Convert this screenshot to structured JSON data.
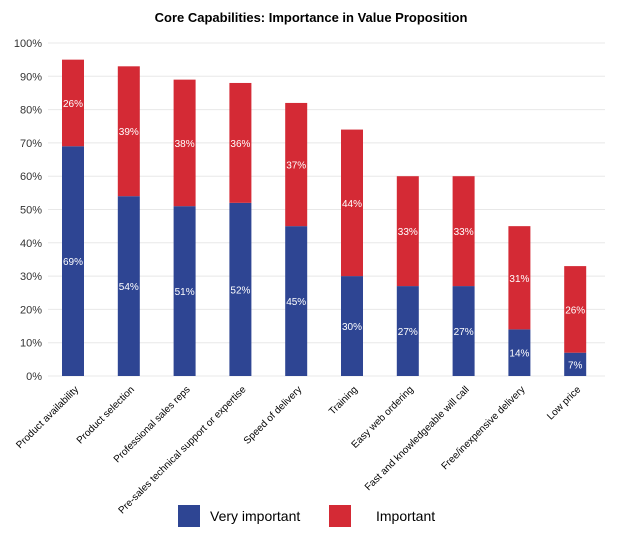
{
  "chart_data": {
    "type": "bar",
    "stacked": true,
    "title": "Core Capabilities: Importance in Value Proposition",
    "xlabel": "",
    "ylabel": "",
    "ylim": [
      0,
      100
    ],
    "yticks": [
      "0%",
      "10%",
      "20%",
      "30%",
      "40%",
      "50%",
      "60%",
      "70%",
      "80%",
      "90%",
      "100%"
    ],
    "grid": true,
    "legend_position": "bottom",
    "categories": [
      "Product availability",
      "Product selection",
      "Professional sales reps",
      "Pre-sales technical support or expertise",
      "Speed of delivery",
      "Training",
      "Easy web ordering",
      "Fast and knowledgeable will call",
      "Free/inexpensive delivery",
      "Low price"
    ],
    "series": [
      {
        "name": "Very important",
        "color": "#2e4593",
        "values": [
          69,
          54,
          51,
          52,
          45,
          30,
          27,
          27,
          14,
          7
        ],
        "labels": [
          "69%",
          "54%",
          "51%",
          "52%",
          "45%",
          "30%",
          "27%",
          "27%",
          "14%",
          "7%"
        ]
      },
      {
        "name": "Important",
        "color": "#d42a35",
        "values": [
          26,
          39,
          38,
          36,
          37,
          44,
          33,
          33,
          31,
          26
        ],
        "labels": [
          "26%",
          "39%",
          "38%",
          "36%",
          "37%",
          "44%",
          "33%",
          "33%",
          "31%",
          "26%"
        ]
      }
    ]
  }
}
